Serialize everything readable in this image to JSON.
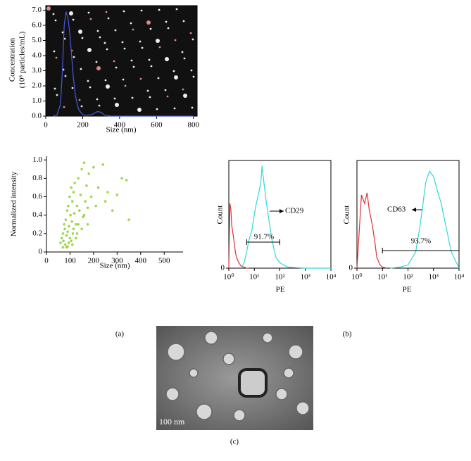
{
  "chart_data": [
    {
      "type": "line",
      "xlabel": "Size (nm)",
      "ylabel": [
        "Concentration",
        "(10⁸ particles/mL)"
      ],
      "xlim": [
        0,
        820
      ],
      "xticks": [
        0,
        200,
        400,
        600,
        800
      ],
      "ylim": [
        0,
        7.3
      ],
      "yticks": [
        {
          "value": 0,
          "label": "0.0"
        },
        {
          "value": 1,
          "label": "1.0"
        },
        {
          "value": 2,
          "label": "2.0"
        },
        {
          "value": 3,
          "label": "3.0"
        },
        {
          "value": 4,
          "label": "4.0"
        },
        {
          "value": 5,
          "label": "5.0"
        },
        {
          "value": 6,
          "label": "6.0"
        },
        {
          "value": 7,
          "label": "7.0"
        }
      ],
      "series": [
        {
          "color": "#4a5ad8",
          "x": [
            40,
            60,
            80,
            90,
            100,
            110,
            120,
            130,
            140,
            150,
            160,
            170,
            180,
            200,
            220,
            250,
            280,
            300,
            320,
            350,
            400,
            500,
            600,
            800
          ],
          "values": [
            0,
            0.05,
            0.8,
            3,
            6,
            6.9,
            6.5,
            5.5,
            4,
            2.5,
            1.4,
            0.8,
            0.4,
            0.1,
            0.05,
            0.1,
            0.3,
            0.25,
            0.05,
            0,
            0,
            0,
            0,
            0
          ]
        }
      ]
    },
    {
      "type": "scatter",
      "xlabel": "Size (nm)",
      "ylabel": [
        "Normalized intensity"
      ],
      "color": "#9ed84a",
      "xlim": [
        0,
        580
      ],
      "xticks": [
        0,
        100,
        200,
        300,
        400,
        500
      ],
      "ylim": [
        0,
        1.04
      ],
      "yticks": [
        0,
        0.2,
        0.4,
        0.6,
        0.8,
        {
          "value": 1,
          "label": "1.0"
        }
      ],
      "x": [
        60,
        65,
        70,
        72,
        75,
        78,
        80,
        82,
        85,
        88,
        90,
        92,
        95,
        98,
        100,
        102,
        105,
        108,
        110,
        112,
        115,
        118,
        120,
        125,
        130,
        135,
        140,
        145,
        150,
        155,
        160,
        165,
        170,
        175,
        180,
        190,
        200,
        210,
        220,
        240,
        260,
        280,
        300,
        340,
        350,
        85,
        95,
        105,
        115,
        125,
        135,
        70,
        90,
        110,
        130,
        150,
        160,
        175,
        250,
        320
      ],
      "values": [
        0.1,
        0.15,
        0.2,
        0.12,
        0.3,
        0.25,
        0.08,
        0.35,
        0.18,
        0.45,
        0.22,
        0.5,
        0.28,
        0.6,
        0.15,
        0.4,
        0.7,
        0.33,
        0.55,
        0.2,
        0.65,
        0.42,
        0.75,
        0.3,
        0.5,
        0.8,
        0.45,
        0.62,
        0.9,
        0.38,
        0.97,
        0.55,
        0.72,
        0.48,
        0.85,
        0.6,
        0.92,
        0.5,
        0.7,
        0.95,
        0.65,
        0.45,
        0.62,
        0.78,
        0.35,
        0.05,
        0.1,
        0.12,
        0.25,
        0.15,
        0.3,
        0.05,
        0.06,
        0.08,
        0.2,
        0.25,
        0.4,
        0.3,
        0.55,
        0.8
      ]
    },
    {
      "type": "line",
      "log_x": true,
      "xlabel": "PE",
      "ylabel": [
        "Count"
      ],
      "label": "CD29",
      "gate_label": "91.7%",
      "gate": [
        5,
        100
      ],
      "xlim": [
        1,
        10000
      ],
      "xticks": [
        {
          "value": 1,
          "label": "10⁰"
        },
        {
          "value": 10,
          "label": "10¹"
        },
        {
          "value": 100,
          "label": "10²"
        },
        {
          "value": 1000,
          "label": "10³"
        },
        {
          "value": 10000,
          "label": "10⁴"
        }
      ],
      "ylim": [
        0,
        100
      ],
      "yticks": [
        0
      ],
      "series": [
        {
          "color": "#e03030",
          "x": [
            1,
            1.1,
            1.2,
            1.3,
            1.5,
            1.8,
            2,
            2.5,
            3,
            4,
            5,
            6
          ],
          "values": [
            0,
            60,
            55,
            40,
            30,
            15,
            10,
            5,
            2,
            1,
            0,
            0
          ]
        },
        {
          "color": "#30d8d8",
          "x": [
            3,
            4,
            5,
            6,
            8,
            10,
            12,
            15,
            18,
            20,
            25,
            30,
            40,
            50,
            70,
            100,
            200,
            1000,
            10000
          ],
          "values": [
            0,
            5,
            15,
            25,
            35,
            50,
            60,
            70,
            80,
            95,
            75,
            60,
            40,
            25,
            10,
            5,
            1,
            0,
            0
          ]
        }
      ]
    },
    {
      "type": "line",
      "log_x": true,
      "xlabel": "PE",
      "ylabel": [
        "Count"
      ],
      "label": "CD63",
      "gate_label": "93.7%",
      "gate": [
        10,
        10000
      ],
      "xlim": [
        1,
        10000
      ],
      "xticks": [
        {
          "value": 1,
          "label": "10⁰"
        },
        {
          "value": 10,
          "label": "10¹"
        },
        {
          "value": 100,
          "label": "10²"
        },
        {
          "value": 1000,
          "label": "10³"
        },
        {
          "value": 10000,
          "label": "10⁴"
        }
      ],
      "ylim": [
        0,
        100
      ],
      "yticks": [
        0
      ],
      "series": [
        {
          "color": "#e03030",
          "x": [
            1,
            1.5,
            2,
            2.5,
            3,
            4,
            5,
            6,
            8,
            10,
            15
          ],
          "values": [
            0,
            68,
            60,
            70,
            55,
            40,
            25,
            10,
            3,
            1,
            0
          ]
        },
        {
          "color": "#30d8d8",
          "x": [
            20,
            50,
            100,
            200,
            300,
            500,
            700,
            1000,
            1500,
            2000,
            3000,
            5000,
            10000
          ],
          "values": [
            0,
            1,
            3,
            15,
            40,
            80,
            90,
            85,
            70,
            60,
            40,
            15,
            0
          ]
        }
      ]
    }
  ],
  "panel_labels": [
    "(a)",
    "(b)",
    "(c)"
  ],
  "micrograph": {
    "scale_bar": "100 nm"
  }
}
